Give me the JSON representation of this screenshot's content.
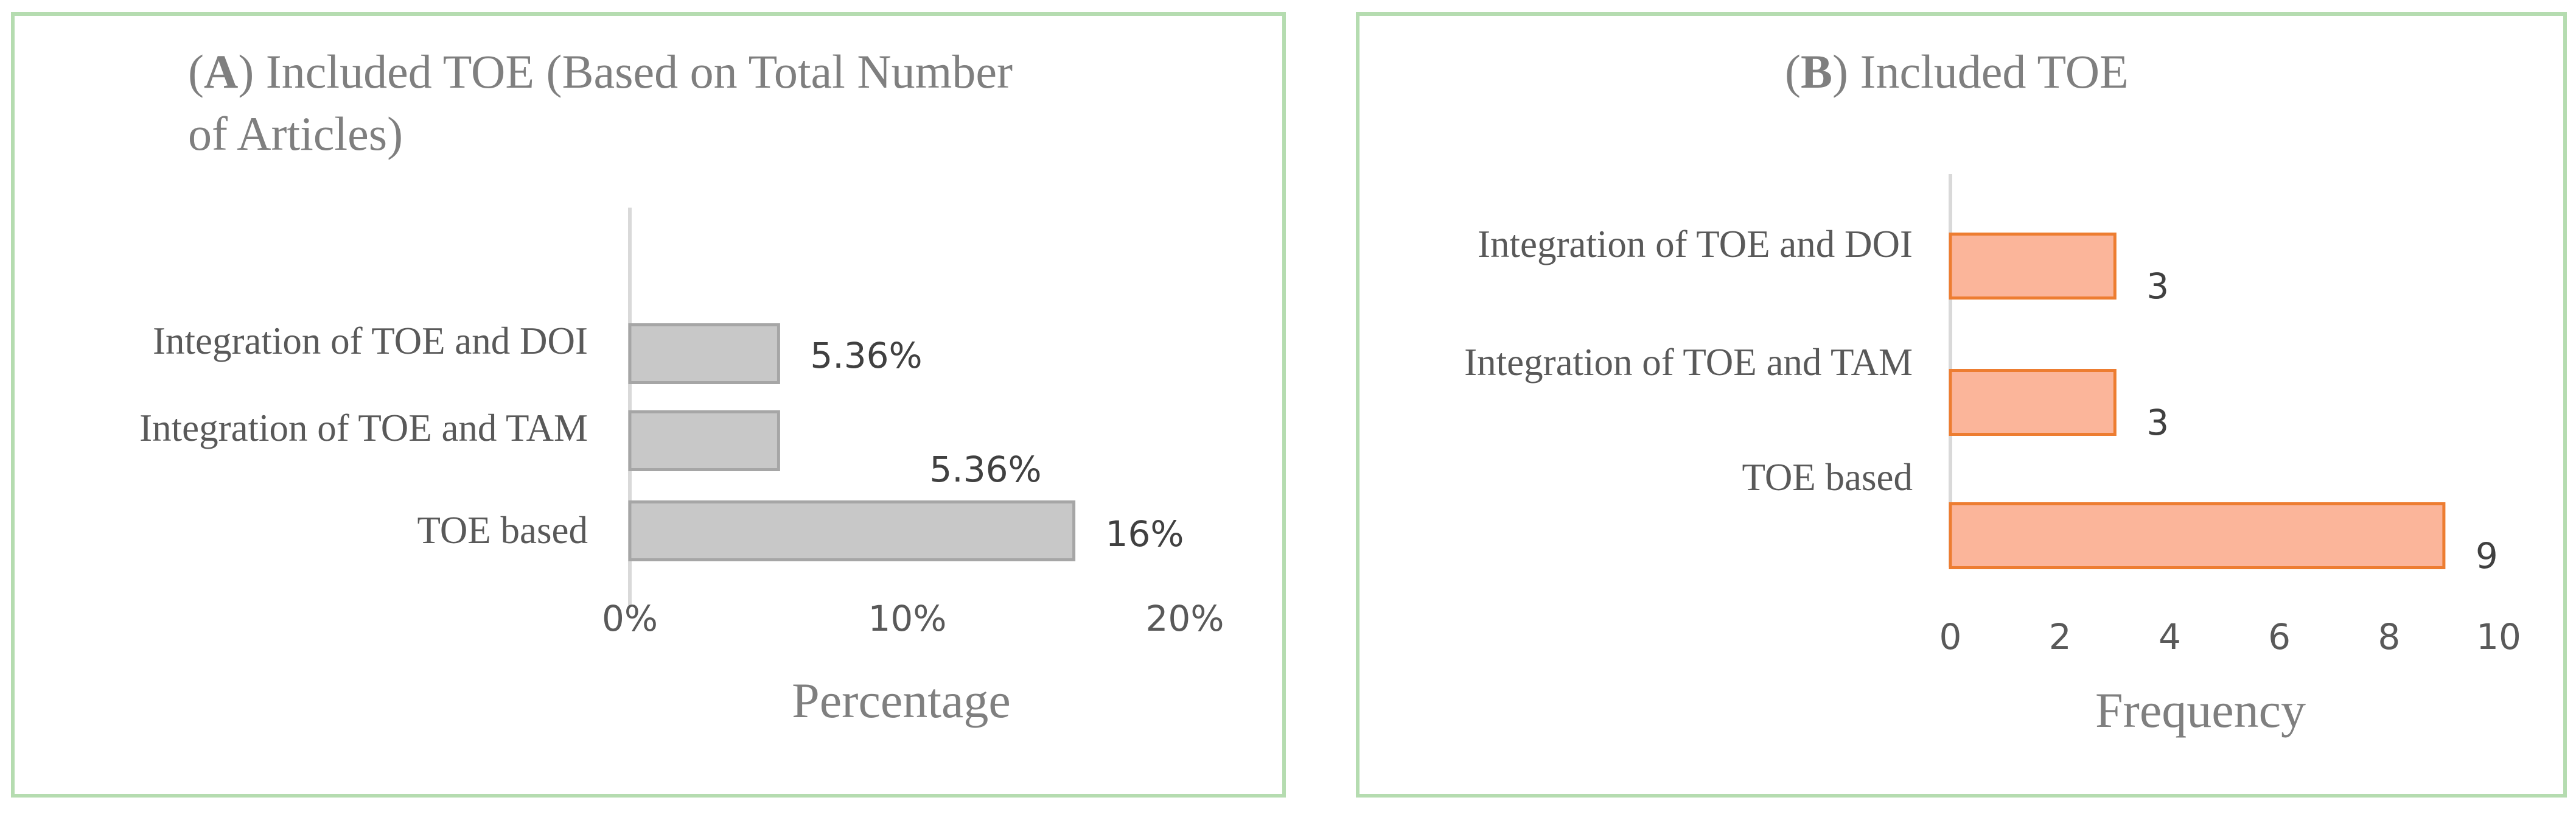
{
  "chart_data": [
    {
      "type": "bar",
      "orientation": "horizontal",
      "title_prefix": "(",
      "title_letter": "A",
      "title_line1": ") Included TOE (Based on Total Number",
      "title_line2": "of Articles)",
      "categories": [
        "Integration of TOE and DOI",
        "Integration of TOE and TAM",
        "TOE based"
      ],
      "values": [
        5.36,
        5.36,
        16
      ],
      "data_labels": [
        "5.36%",
        "5.36%",
        "16%"
      ],
      "xlabel": "Percentage",
      "xlim": [
        0,
        20
      ],
      "xticks": [
        0,
        10,
        20
      ],
      "xtick_labels": [
        "0%",
        "10%",
        "20%"
      ],
      "grid": false,
      "colors": {
        "bar_fill": "#c8c8c8",
        "bar_stroke": "#a6a6a6",
        "axis": "#d9d9d9"
      }
    },
    {
      "type": "bar",
      "orientation": "horizontal",
      "title_prefix": "(",
      "title_letter": "B",
      "title_line1": ") Included TOE",
      "categories": [
        "Integration of TOE and DOI",
        "Integration of TOE and TAM",
        "TOE based"
      ],
      "values": [
        3,
        3,
        9
      ],
      "data_labels": [
        "3",
        "3",
        "9"
      ],
      "xlabel": "Frequency",
      "xlim": [
        0,
        10
      ],
      "xticks": [
        0,
        2,
        4,
        6,
        8,
        10
      ],
      "xtick_labels": [
        "0",
        "2",
        "4",
        "6",
        "8",
        "10"
      ],
      "grid": false,
      "colors": {
        "bar_fill": "#fbb59a",
        "bar_stroke": "#ed7d31",
        "axis": "#d9d9d9"
      }
    }
  ]
}
